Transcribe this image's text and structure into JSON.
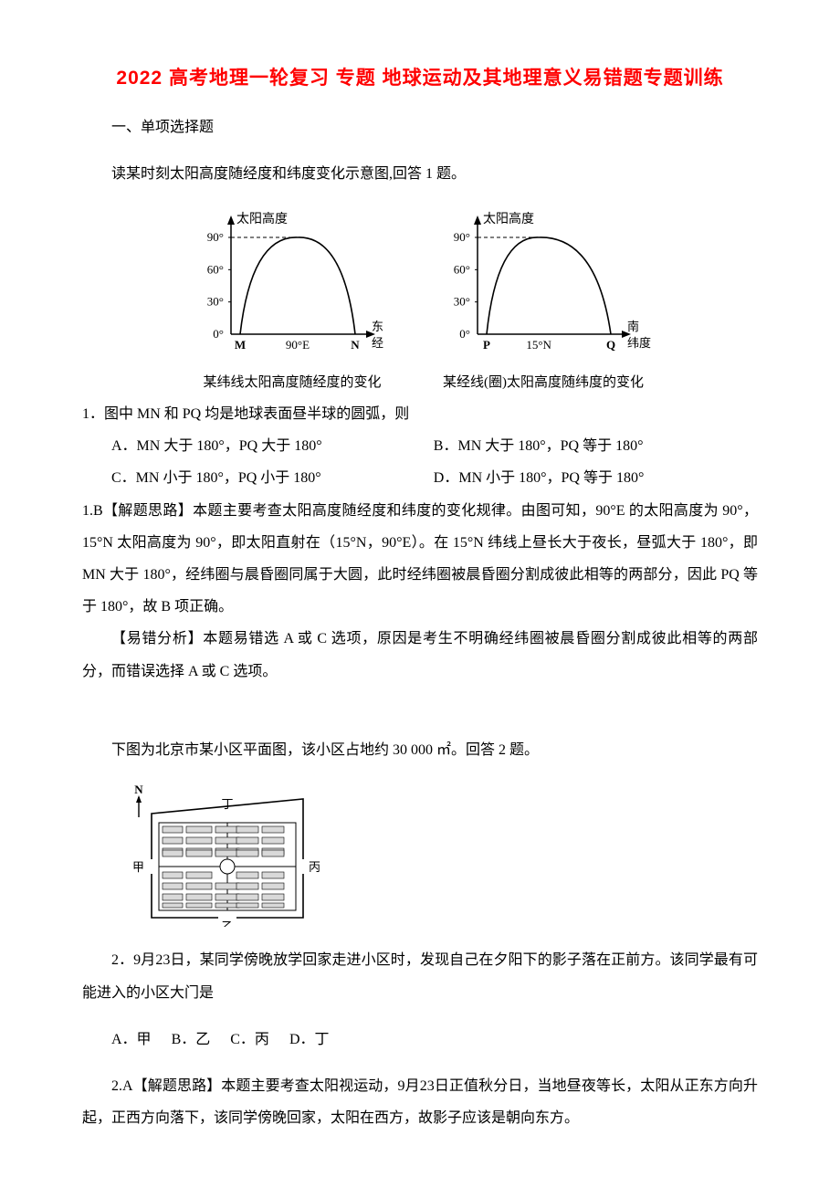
{
  "title": "2022 高考地理一轮复习 专题 地球运动及其地理意义易错题专题训练",
  "section_heading": "一、单项选择题",
  "intro1": "读某时刻太阳高度随经度和纬度变化示意图,回答 1 题。",
  "chart1": {
    "y_label": "太阳高度",
    "x_p1": "M",
    "x_mid": "90°E",
    "x_p2": "N",
    "x_unit_top": "东",
    "x_unit_bot": "经",
    "ticks": [
      "90°",
      "60°",
      "30°",
      "0°"
    ],
    "caption": "某纬线太阳高度随经度的变化",
    "axis_color": "#000",
    "curve_color": "#000",
    "tick_dash": "4,3"
  },
  "chart2": {
    "y_label": "太阳高度",
    "x_p1": "P",
    "x_mid": "15°N",
    "x_p2": "Q",
    "x_unit_top": "南",
    "x_unit_bot": "纬度",
    "ticks": [
      "90°",
      "60°",
      "30°",
      "0°"
    ],
    "caption": "某经线(圈)太阳高度随纬度的变化",
    "axis_color": "#000",
    "curve_color": "#000",
    "tick_dash": "4,3"
  },
  "q1": {
    "stem": "1．图中 MN 和 PQ 均是地球表面昼半球的圆弧，则",
    "optA": "A．MN 大于 180°，PQ 大于 180°",
    "optB": "B．MN 大于 180°，PQ 等于 180°",
    "optC": "C．MN 小于 180°，PQ 小于 180°",
    "optD": "D．MN 小于 180°，PQ 等于 180°"
  },
  "exp1a": "1.B【解题思路】本题主要考查太阳高度随经度和纬度的变化规律。由图可知，90°E 的太阳高度为 90°，15°N 太阳高度为 90°，即太阳直射在（15°N，90°E）。在 15°N 纬线上昼长大于夜长，昼弧大于 180°，即 MN 大于 180°，经纬圈与晨昏圈同属于大圆，此时经纬圈被晨昏圈分割成彼此相等的两部分，因此 PQ 等于 180°，故 B 项正确。",
  "exp1b": "【易错分析】本题易错选 A 或 C 选项，原因是考生不明确经纬圈被晨昏圈分割成彼此相等的两部分，而错误选择 A 或 C 选项。",
  "intro2_pre": "下图为北京市某小区平面图，该小区占地约 30 000 ㎡",
  "intro2_post": "。回答 2 题。",
  "map": {
    "n_arrow": "N",
    "t_top": "丁",
    "t_left": "甲",
    "t_right": "丙",
    "t_bottom": "乙",
    "stroke": "#000",
    "fill": "#fff",
    "block_fill": "#d9d9d9"
  },
  "q2": {
    "stem": "2．9月23日，某同学傍晚放学回家走进小区时，发现自己在夕阳下的影子落在正前方。该同学最有可能进入的小区大门是",
    "optA": "A．甲",
    "optB": "B．乙",
    "optC": "C．丙",
    "optD": "D．丁"
  },
  "exp2": "2.A【解题思路】本题主要考查太阳视运动，9月23日正值秋分日，当地昼夜等长，太阳从正东方向升起，正西方向落下，该同学傍晚回家，太阳在西方，故影子应该是朝向东方。"
}
